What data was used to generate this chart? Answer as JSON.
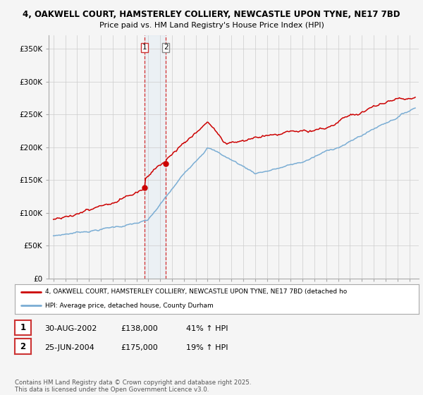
{
  "title1": "4, OAKWELL COURT, HAMSTERLEY COLLIERY, NEWCASTLE UPON TYNE, NE17 7BD",
  "title2": "Price paid vs. HM Land Registry's House Price Index (HPI)",
  "ylabel_ticks": [
    "£0",
    "£50K",
    "£100K",
    "£150K",
    "£200K",
    "£250K",
    "£300K",
    "£350K"
  ],
  "ytick_vals": [
    0,
    50000,
    100000,
    150000,
    200000,
    250000,
    300000,
    350000
  ],
  "ylim": [
    0,
    370000
  ],
  "legend_property": "4, OAKWELL COURT, HAMSTERLEY COLLIERY, NEWCASTLE UPON TYNE, NE17 7BD (detached ho",
  "legend_hpi": "HPI: Average price, detached house, County Durham",
  "sale1_date": "30-AUG-2002",
  "sale1_price": "£138,000",
  "sale1_hpi": "41% ↑ HPI",
  "sale2_date": "25-JUN-2004",
  "sale2_price": "£175,000",
  "sale2_hpi": "19% ↑ HPI",
  "footnote": "Contains HM Land Registry data © Crown copyright and database right 2025.\nThis data is licensed under the Open Government Licence v3.0.",
  "property_color": "#cc0000",
  "hpi_color": "#7aadd4",
  "background_color": "#f5f5f5",
  "plot_bg_color": "#f5f5f5",
  "grid_color": "#cccccc",
  "sale1_year": 2002.66,
  "sale2_year": 2004.48,
  "sale1_price_val": 138000,
  "sale2_price_val": 175000
}
